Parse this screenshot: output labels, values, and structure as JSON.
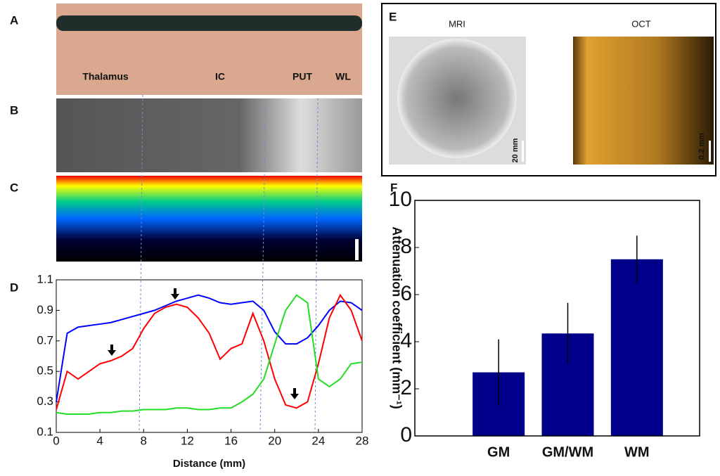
{
  "panels": {
    "labels": [
      "A",
      "B",
      "C",
      "D",
      "E",
      "F"
    ]
  },
  "panel_a": {
    "labels": [
      "Thalamus",
      "IC",
      "PUT",
      "WL"
    ]
  },
  "panel_e": {
    "titles": [
      "MRI",
      "OCT"
    ],
    "scales": [
      "20 mm",
      "0.2 mm"
    ]
  },
  "chart_data": [
    {
      "type": "line",
      "x_label": "Distance (mm)",
      "x": [
        0,
        1,
        2,
        3,
        4,
        5,
        6,
        7,
        8,
        9,
        10,
        11,
        12,
        13,
        14,
        15,
        16,
        17,
        18,
        19,
        20,
        21,
        22,
        23,
        24,
        25,
        26,
        27,
        28
      ],
      "series": [
        {
          "color": "#0000ff",
          "values": [
            0.3,
            0.75,
            0.79,
            0.8,
            0.81,
            0.82,
            0.84,
            0.86,
            0.88,
            0.9,
            0.93,
            0.96,
            0.98,
            1.0,
            0.98,
            0.95,
            0.94,
            0.95,
            0.96,
            0.9,
            0.76,
            0.68,
            0.68,
            0.72,
            0.8,
            0.9,
            0.96,
            0.95,
            0.9
          ]
        },
        {
          "color": "#ff0000",
          "values": [
            0.25,
            0.5,
            0.45,
            0.5,
            0.55,
            0.57,
            0.6,
            0.65,
            0.78,
            0.88,
            0.92,
            0.94,
            0.92,
            0.85,
            0.75,
            0.58,
            0.65,
            0.68,
            0.88,
            0.7,
            0.45,
            0.28,
            0.26,
            0.3,
            0.55,
            0.85,
            1.0,
            0.9,
            0.7
          ]
        },
        {
          "color": "#22dd22",
          "values": [
            0.23,
            0.22,
            0.22,
            0.22,
            0.23,
            0.23,
            0.24,
            0.24,
            0.25,
            0.25,
            0.25,
            0.26,
            0.26,
            0.25,
            0.25,
            0.26,
            0.26,
            0.3,
            0.35,
            0.45,
            0.68,
            0.9,
            1.0,
            0.95,
            0.45,
            0.4,
            0.45,
            0.55,
            0.56
          ]
        }
      ],
      "xlim": [
        0,
        28
      ],
      "xticks": [
        0,
        4,
        8,
        12,
        16,
        20,
        24,
        28
      ],
      "ylim": [
        0.1,
        1.1
      ],
      "yticks": [
        0.1,
        0.3,
        0.5,
        0.7,
        0.9,
        1.1
      ]
    },
    {
      "type": "bar",
      "y_label": "Attenuation coefficient (mm⁻¹)",
      "categories": [
        "GM",
        "GM/WM",
        "WM"
      ],
      "values": [
        2.7,
        4.35,
        7.5
      ],
      "errors": [
        1.4,
        1.3,
        1.0
      ],
      "color": "#00008b",
      "ylim": [
        0,
        10
      ],
      "yticks": [
        0,
        2,
        4,
        6,
        8,
        10
      ]
    }
  ]
}
